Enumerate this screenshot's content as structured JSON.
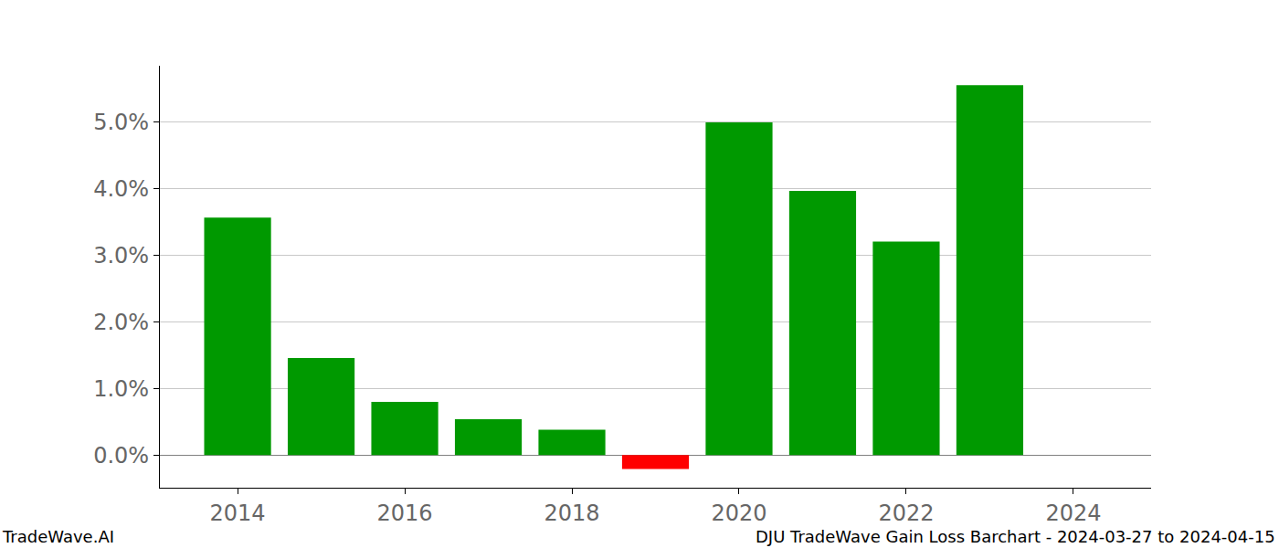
{
  "chart_data": {
    "type": "bar",
    "x": [
      2014,
      2015,
      2016,
      2017,
      2018,
      2019,
      2020,
      2021,
      2022,
      2023
    ],
    "values": [
      3.57,
      1.46,
      0.8,
      0.54,
      0.38,
      -0.21,
      5.0,
      3.97,
      3.21,
      5.56
    ],
    "colors": [
      "#009900",
      "#009900",
      "#009900",
      "#009900",
      "#009900",
      "#ff0000",
      "#009900",
      "#009900",
      "#009900",
      "#009900"
    ],
    "xlim": [
      2013.07,
      2024.93
    ],
    "xticks": [
      2014,
      2016,
      2018,
      2020,
      2022,
      2024
    ],
    "ylim": [
      -0.49,
      5.85
    ],
    "yticks": [
      {
        "value": 0,
        "label": "0.0%"
      },
      {
        "value": 1,
        "label": "1.0%"
      },
      {
        "value": 2,
        "label": "2.0%"
      },
      {
        "value": 3,
        "label": "3.0%"
      },
      {
        "value": 4,
        "label": "4.0%"
      },
      {
        "value": 5,
        "label": "5.0%"
      }
    ],
    "grid": "y",
    "annotations": [
      "TradeWave.AI",
      "DJU TradeWave Gain Loss Barchart - 2024-03-27 to 2024-04-15"
    ]
  }
}
